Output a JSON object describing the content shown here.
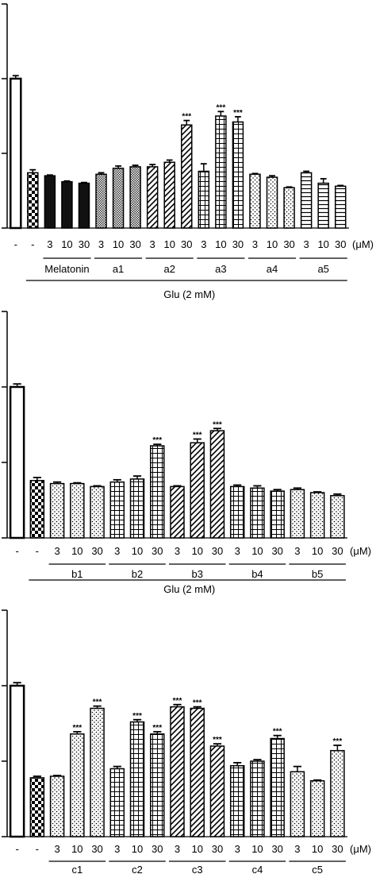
{
  "colors": {
    "bar_stroke": "#000000",
    "background": "#ffffff"
  },
  "chart_data": [
    {
      "type": "bar",
      "ylim": [
        0,
        1.5
      ],
      "unit": "(μM)",
      "axis_group_label": "Glu (2 mM)",
      "tick_labels": [
        "-",
        "-",
        "3",
        "10",
        "30",
        "3",
        "10",
        "30",
        "3",
        "10",
        "30",
        "3",
        "10",
        "30",
        "3",
        "10",
        "30",
        "3",
        "10",
        "30"
      ],
      "values": [
        1.0,
        0.37,
        0.35,
        0.31,
        0.3,
        0.36,
        0.4,
        0.41,
        0.41,
        0.44,
        0.69,
        0.38,
        0.75,
        0.71,
        0.36,
        0.34,
        0.27,
        0.37,
        0.3,
        0.28
      ],
      "errors": [
        0.02,
        0.02,
        0.005,
        0.005,
        0.005,
        0.01,
        0.015,
        0.01,
        0.015,
        0.015,
        0.03,
        0.05,
        0.03,
        0.035,
        0.005,
        0.01,
        0.005,
        0.01,
        0.03,
        0.005
      ],
      "significance": [
        "",
        "",
        "",
        "",
        "",
        "",
        "",
        "",
        "",
        "",
        "***",
        "",
        "***",
        "***",
        "",
        "",
        "",
        "",
        "",
        ""
      ],
      "patterns": [
        "white",
        "checker",
        "black",
        "black",
        "black",
        "dense",
        "dense",
        "dense",
        "diagonal",
        "diagonal",
        "diagonal",
        "grid",
        "grid",
        "grid",
        "dots",
        "dots",
        "dots",
        "hlines",
        "hlines",
        "hlines"
      ],
      "groups": [
        {
          "label": "Melatonin",
          "from": 2,
          "to": 4
        },
        {
          "label": "a1",
          "from": 5,
          "to": 7
        },
        {
          "label": "a2",
          "from": 8,
          "to": 10
        },
        {
          "label": "a3",
          "from": 11,
          "to": 13
        },
        {
          "label": "a4",
          "from": 14,
          "to": 16
        },
        {
          "label": "a5",
          "from": 17,
          "to": 19
        }
      ]
    },
    {
      "type": "bar",
      "ylim": [
        0,
        1.5
      ],
      "unit": "(μM)",
      "axis_group_label": "Glu (2 mM)",
      "tick_labels": [
        "-",
        "-",
        "3",
        "10",
        "30",
        "3",
        "10",
        "30",
        "3",
        "10",
        "30",
        "3",
        "10",
        "30",
        "3",
        "10",
        "30"
      ],
      "values": [
        1.0,
        0.38,
        0.36,
        0.36,
        0.34,
        0.37,
        0.39,
        0.61,
        0.34,
        0.63,
        0.71,
        0.34,
        0.33,
        0.31,
        0.32,
        0.3,
        0.28
      ],
      "errors": [
        0.02,
        0.02,
        0.01,
        0.005,
        0.005,
        0.015,
        0.02,
        0.01,
        0.005,
        0.025,
        0.015,
        0.01,
        0.015,
        0.01,
        0.01,
        0.005,
        0.01
      ],
      "significance": [
        "",
        "",
        "",
        "",
        "",
        "",
        "",
        "***",
        "",
        "***",
        "***",
        "",
        "",
        "",
        "",
        "",
        ""
      ],
      "patterns": [
        "white",
        "checker",
        "dots",
        "dots",
        "dots",
        "grid",
        "grid",
        "grid",
        "diagonal",
        "diagonal",
        "diagonal",
        "grid",
        "grid",
        "grid",
        "dots",
        "dots",
        "dots"
      ],
      "groups": [
        {
          "label": "b1",
          "from": 2,
          "to": 4
        },
        {
          "label": "b2",
          "from": 5,
          "to": 7
        },
        {
          "label": "b3",
          "from": 8,
          "to": 10
        },
        {
          "label": "b4",
          "from": 11,
          "to": 13
        },
        {
          "label": "b5",
          "from": 14,
          "to": 16
        }
      ]
    },
    {
      "type": "bar",
      "ylim": [
        0,
        1.5
      ],
      "unit": "(μM)",
      "tick_labels": [
        "-",
        "-",
        "3",
        "10",
        "30",
        "3",
        "10",
        "30",
        "3",
        "10",
        "30",
        "3",
        "10",
        "30",
        "3",
        "10",
        "30"
      ],
      "values": [
        1.0,
        0.39,
        0.4,
        0.68,
        0.85,
        0.45,
        0.76,
        0.68,
        0.86,
        0.85,
        0.6,
        0.47,
        0.5,
        0.65,
        0.43,
        0.37,
        0.57
      ],
      "errors": [
        0.02,
        0.01,
        0.005,
        0.015,
        0.015,
        0.015,
        0.015,
        0.015,
        0.015,
        0.01,
        0.015,
        0.02,
        0.01,
        0.02,
        0.035,
        0.005,
        0.035
      ],
      "significance": [
        "",
        "",
        "",
        "***",
        "***",
        "",
        "***",
        "***",
        "***",
        "***",
        "***",
        "",
        "",
        "***",
        "",
        "",
        "***"
      ],
      "patterns": [
        "white",
        "checker",
        "dots",
        "dots",
        "dots",
        "grid",
        "grid",
        "grid",
        "diagonal",
        "diagonal",
        "diagonal",
        "grid",
        "grid",
        "grid",
        "dots",
        "dots",
        "dots"
      ],
      "groups": [
        {
          "label": "c1",
          "from": 2,
          "to": 4
        },
        {
          "label": "c2",
          "from": 5,
          "to": 7
        },
        {
          "label": "c3",
          "from": 8,
          "to": 10
        },
        {
          "label": "c4",
          "from": 11,
          "to": 13
        },
        {
          "label": "c5",
          "from": 14,
          "to": 16
        }
      ]
    }
  ]
}
